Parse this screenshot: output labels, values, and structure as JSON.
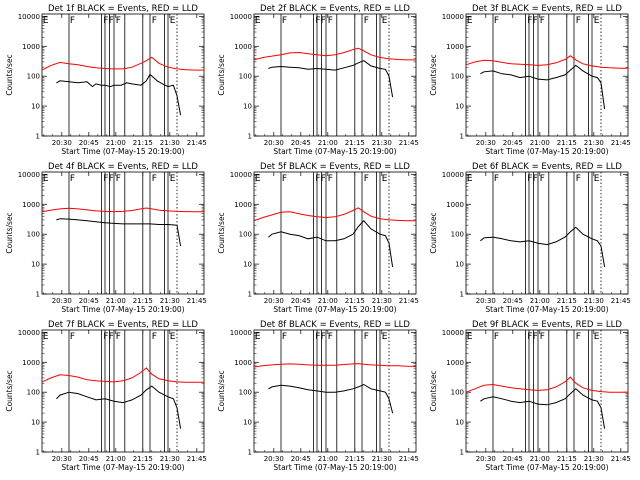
{
  "panel_title_suffix": "BLACK = Events, RED = LLD",
  "ylabel": "Counts/sec",
  "xlabel": "Start Time (07-May-15 20:19:00)",
  "x_tick_labels": [
    "20:30",
    "20:45",
    "21:00",
    "21:15",
    "21:30",
    "21:45"
  ],
  "y_tick_labels": [
    "1",
    "10",
    "100",
    "1000",
    "10000"
  ],
  "colors": {
    "events": "#000000",
    "lld": "#ff0000",
    "axes": "#000000"
  },
  "flag_markers": [
    {
      "label": "E",
      "time_min": 0.5
    },
    {
      "label": "F",
      "time_min": 15.5
    },
    {
      "label": "F",
      "time_min": 34
    },
    {
      "label": "F",
      "time_min": 37
    },
    {
      "label": "F",
      "time_min": 41
    },
    {
      "label": "F",
      "time_min": 61
    },
    {
      "label": "E",
      "time_min": 71
    }
  ],
  "chart_data": [
    {
      "type": "line",
      "title": "Det 1f",
      "xlim": [
        0,
        90
      ],
      "ylim": [
        1,
        12000
      ],
      "yscale": "log",
      "vlines_solid": [
        15,
        33,
        35,
        37.5,
        40,
        46,
        56,
        60,
        68,
        70
      ],
      "vlines_dotted": [
        75
      ],
      "series": [
        {
          "name": "Events",
          "color": "#000000",
          "t": [
            8,
            10,
            15,
            20,
            25,
            28,
            30,
            33,
            35,
            38,
            40,
            44,
            47,
            50,
            55,
            58,
            60,
            64,
            67,
            70,
            73,
            75,
            77
          ],
          "v": [
            60,
            70,
            65,
            60,
            65,
            45,
            55,
            50,
            50,
            45,
            50,
            50,
            60,
            55,
            50,
            70,
            115,
            70,
            55,
            45,
            50,
            22,
            5
          ]
        },
        {
          "name": "LLD",
          "color": "#ff0000",
          "t": [
            0,
            5,
            10,
            15,
            20,
            25,
            30,
            35,
            40,
            45,
            50,
            55,
            58,
            61,
            65,
            70,
            75,
            80,
            85,
            90
          ],
          "v": [
            160,
            230,
            290,
            260,
            240,
            210,
            190,
            180,
            175,
            175,
            200,
            270,
            330,
            430,
            270,
            200,
            175,
            165,
            160,
            160
          ]
        }
      ]
    },
    {
      "type": "line",
      "title": "Det 2f",
      "xlim": [
        0,
        90
      ],
      "ylim": [
        1,
        12000
      ],
      "yscale": "log",
      "vlines_solid": [
        15,
        33,
        35,
        37.5,
        40,
        46,
        56,
        60,
        68,
        70
      ],
      "vlines_dotted": [
        75
      ],
      "series": [
        {
          "name": "Events",
          "color": "#000000",
          "t": [
            8,
            10,
            15,
            20,
            25,
            30,
            35,
            40,
            45,
            50,
            55,
            58,
            61,
            65,
            70,
            73,
            75,
            77
          ],
          "v": [
            180,
            200,
            210,
            200,
            190,
            170,
            180,
            170,
            160,
            190,
            230,
            280,
            330,
            220,
            180,
            170,
            100,
            20
          ]
        },
        {
          "name": "LLD",
          "color": "#ff0000",
          "t": [
            0,
            5,
            10,
            15,
            20,
            25,
            30,
            35,
            40,
            45,
            50,
            55,
            58,
            61,
            65,
            70,
            75,
            80,
            85,
            90
          ],
          "v": [
            350,
            420,
            470,
            520,
            600,
            620,
            560,
            520,
            480,
            520,
            620,
            770,
            860,
            700,
            520,
            420,
            380,
            360,
            350,
            350
          ]
        }
      ]
    },
    {
      "type": "line",
      "title": "Det 3f",
      "xlim": [
        0,
        90
      ],
      "ylim": [
        1,
        12000
      ],
      "yscale": "log",
      "vlines_solid": [
        15,
        33,
        35,
        37.5,
        40,
        46,
        56,
        60,
        68,
        70
      ],
      "vlines_dotted": [
        75
      ],
      "series": [
        {
          "name": "Events",
          "color": "#000000",
          "t": [
            8,
            10,
            15,
            20,
            25,
            30,
            35,
            40,
            45,
            50,
            55,
            58,
            61,
            65,
            70,
            73,
            75,
            77
          ],
          "v": [
            120,
            140,
            150,
            120,
            110,
            90,
            100,
            80,
            75,
            90,
            110,
            160,
            230,
            150,
            100,
            90,
            60,
            8
          ]
        },
        {
          "name": "LLD",
          "color": "#ff0000",
          "t": [
            0,
            5,
            10,
            15,
            20,
            25,
            30,
            35,
            40,
            45,
            50,
            55,
            58,
            61,
            65,
            70,
            75,
            80,
            85,
            90
          ],
          "v": [
            240,
            300,
            340,
            330,
            290,
            260,
            250,
            240,
            230,
            240,
            280,
            360,
            480,
            350,
            260,
            220,
            200,
            190,
            185,
            185
          ]
        }
      ]
    },
    {
      "type": "line",
      "title": "Det 4f",
      "xlim": [
        0,
        90
      ],
      "ylim": [
        1,
        12000
      ],
      "yscale": "log",
      "vlines_solid": [
        15,
        33,
        35,
        37.5,
        40,
        46,
        56,
        60,
        68,
        70
      ],
      "vlines_dotted": [
        75
      ],
      "series": [
        {
          "name": "Events",
          "color": "#000000",
          "t": [
            8,
            10,
            15,
            20,
            25,
            30,
            35,
            40,
            45,
            50,
            55,
            60,
            65,
            70,
            75,
            77
          ],
          "v": [
            300,
            330,
            320,
            300,
            280,
            260,
            240,
            230,
            220,
            220,
            220,
            220,
            210,
            210,
            200,
            40
          ]
        },
        {
          "name": "LLD",
          "color": "#ff0000",
          "t": [
            0,
            5,
            10,
            15,
            20,
            25,
            30,
            35,
            40,
            45,
            50,
            55,
            58,
            61,
            65,
            70,
            75,
            80,
            85,
            90
          ],
          "v": [
            560,
            640,
            700,
            740,
            700,
            650,
            600,
            580,
            570,
            580,
            620,
            700,
            750,
            700,
            640,
            600,
            580,
            570,
            560,
            560
          ]
        }
      ]
    },
    {
      "type": "line",
      "title": "Det 5f",
      "xlim": [
        0,
        90
      ],
      "ylim": [
        1,
        12000
      ],
      "yscale": "log",
      "vlines_solid": [
        15,
        33,
        35,
        37.5,
        40,
        46,
        56,
        60,
        68,
        70
      ],
      "vlines_dotted": [
        75
      ],
      "series": [
        {
          "name": "Events",
          "color": "#000000",
          "t": [
            8,
            10,
            15,
            20,
            25,
            30,
            35,
            40,
            45,
            50,
            55,
            58,
            61,
            65,
            70,
            73,
            75,
            77
          ],
          "v": [
            80,
            100,
            120,
            100,
            90,
            70,
            80,
            60,
            60,
            70,
            100,
            180,
            280,
            150,
            100,
            90,
            50,
            8
          ]
        },
        {
          "name": "LLD",
          "color": "#ff0000",
          "t": [
            0,
            5,
            10,
            15,
            20,
            25,
            30,
            35,
            40,
            45,
            50,
            55,
            58,
            61,
            65,
            70,
            75,
            80,
            85,
            90
          ],
          "v": [
            280,
            360,
            440,
            540,
            560,
            480,
            420,
            380,
            360,
            380,
            460,
            620,
            760,
            560,
            400,
            330,
            300,
            290,
            280,
            280
          ]
        }
      ]
    },
    {
      "type": "line",
      "title": "Det 6f",
      "xlim": [
        0,
        90
      ],
      "ylim": [
        1,
        12000
      ],
      "yscale": "log",
      "vlines_solid": [
        15,
        33,
        35,
        37.5,
        40,
        46,
        56,
        60,
        68,
        70
      ],
      "vlines_dotted": [
        75
      ],
      "series": [
        {
          "name": "Events",
          "color": "#000000",
          "t": [
            8,
            10,
            15,
            20,
            25,
            30,
            35,
            40,
            45,
            50,
            55,
            58,
            61,
            65,
            70,
            73,
            75,
            77
          ],
          "v": [
            60,
            75,
            80,
            70,
            60,
            55,
            60,
            50,
            45,
            55,
            80,
            120,
            170,
            100,
            70,
            60,
            40,
            8
          ]
        }
      ]
    },
    {
      "type": "line",
      "title": "Det 7f",
      "xlim": [
        0,
        90
      ],
      "ylim": [
        1,
        12000
      ],
      "yscale": "log",
      "vlines_solid": [
        15,
        33,
        35,
        37.5,
        40,
        46,
        56,
        60,
        68,
        70
      ],
      "vlines_dotted": [
        75
      ],
      "series": [
        {
          "name": "Events",
          "color": "#000000",
          "t": [
            8,
            10,
            15,
            20,
            25,
            30,
            35,
            40,
            45,
            50,
            55,
            58,
            61,
            65,
            70,
            73,
            75,
            77
          ],
          "v": [
            60,
            80,
            100,
            90,
            70,
            55,
            60,
            50,
            45,
            55,
            80,
            120,
            160,
            100,
            70,
            60,
            30,
            6
          ]
        },
        {
          "name": "LLD",
          "color": "#ff0000",
          "t": [
            0,
            5,
            10,
            15,
            20,
            25,
            30,
            35,
            40,
            45,
            50,
            55,
            58,
            61,
            65,
            70,
            75,
            80,
            85,
            90
          ],
          "v": [
            220,
            300,
            380,
            360,
            320,
            260,
            240,
            230,
            220,
            240,
            300,
            460,
            650,
            400,
            280,
            240,
            220,
            215,
            215,
            215
          ]
        }
      ]
    },
    {
      "type": "line",
      "title": "Det 8f",
      "xlim": [
        0,
        90
      ],
      "ylim": [
        1,
        12000
      ],
      "yscale": "log",
      "vlines_solid": [
        15,
        33,
        35,
        37.5,
        40,
        46,
        56,
        60,
        68,
        70
      ],
      "vlines_dotted": [
        75
      ],
      "series": [
        {
          "name": "Events",
          "color": "#000000",
          "t": [
            8,
            10,
            15,
            20,
            25,
            30,
            35,
            40,
            45,
            50,
            55,
            58,
            61,
            65,
            70,
            73,
            75,
            77
          ],
          "v": [
            130,
            150,
            170,
            160,
            140,
            120,
            110,
            100,
            100,
            110,
            130,
            150,
            180,
            130,
            110,
            100,
            60,
            20
          ]
        },
        {
          "name": "LLD",
          "color": "#ff0000",
          "t": [
            0,
            5,
            10,
            15,
            20,
            25,
            30,
            35,
            40,
            45,
            50,
            55,
            58,
            61,
            65,
            70,
            75,
            80,
            85,
            90
          ],
          "v": [
            700,
            760,
            820,
            860,
            880,
            860,
            820,
            800,
            790,
            800,
            840,
            880,
            900,
            860,
            820,
            790,
            770,
            760,
            740,
            730
          ]
        }
      ]
    },
    {
      "type": "line",
      "title": "Det 9f",
      "xlim": [
        0,
        90
      ],
      "ylim": [
        1,
        12000
      ],
      "yscale": "log",
      "vlines_solid": [
        15,
        33,
        35,
        37.5,
        40,
        46,
        56,
        60,
        68,
        70
      ],
      "vlines_dotted": [
        75
      ],
      "series": [
        {
          "name": "Events",
          "color": "#000000",
          "t": [
            8,
            10,
            15,
            20,
            25,
            30,
            35,
            40,
            45,
            50,
            55,
            58,
            61,
            65,
            70,
            73,
            75,
            77
          ],
          "v": [
            50,
            60,
            70,
            60,
            50,
            45,
            50,
            40,
            38,
            45,
            60,
            90,
            130,
            80,
            55,
            50,
            30,
            6
          ]
        },
        {
          "name": "LLD",
          "color": "#ff0000",
          "t": [
            0,
            5,
            10,
            15,
            20,
            25,
            30,
            35,
            40,
            45,
            50,
            55,
            58,
            61,
            65,
            70,
            75,
            80,
            85,
            90
          ],
          "v": [
            100,
            130,
            170,
            180,
            160,
            140,
            130,
            120,
            115,
            120,
            150,
            220,
            320,
            200,
            140,
            115,
            105,
            100,
            100,
            100
          ]
        }
      ]
    }
  ]
}
